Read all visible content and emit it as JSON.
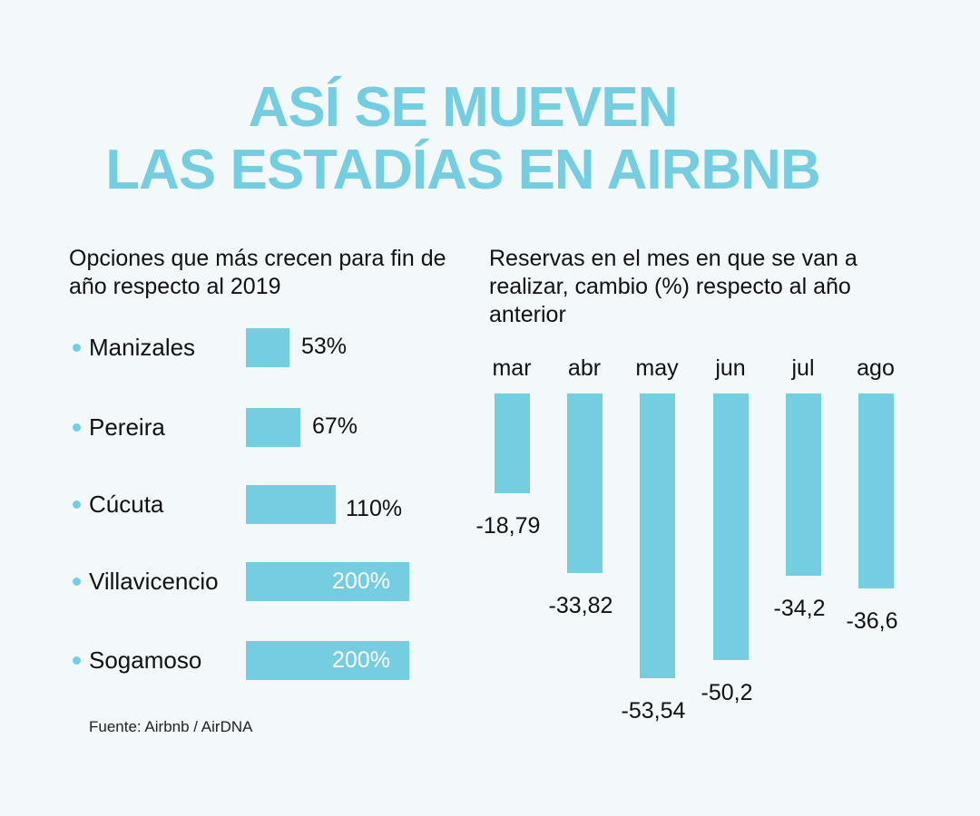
{
  "header": {
    "title_line1": "ASÍ SE MUEVEN",
    "title_line2": "LAS ESTADÍAS EN AIRBNB"
  },
  "colors": {
    "accent": "#74cde1",
    "background": "#f3f9fa",
    "text": "#111111"
  },
  "source": "Fuente: Airbnb / AirDNA",
  "chart_data": [
    {
      "type": "bar",
      "orientation": "horizontal",
      "title": "Opciones que más crecen para fin de año respecto al 2019",
      "categories": [
        "Manizales",
        "Pereira",
        "Cúcuta",
        "Villavicencio",
        "Sogamoso"
      ],
      "values": [
        53,
        67,
        110,
        200,
        200
      ],
      "labels": [
        "53%",
        "67%",
        "110%",
        "200%",
        "200%"
      ],
      "unit": "%",
      "xlim": [
        0,
        200
      ],
      "grid": false
    },
    {
      "type": "bar",
      "orientation": "vertical",
      "title": "Reservas en el mes en que se van a realizar, cambio (%) respecto al año anterior",
      "categories": [
        "mar",
        "abr",
        "may",
        "jun",
        "jul",
        "ago"
      ],
      "values": [
        -18.79,
        -33.82,
        -53.54,
        -50.2,
        -34.2,
        -36.6
      ],
      "labels": [
        "-18,79",
        "-33,82",
        "-53,54",
        "-50,2",
        "-34,2",
        "-36,6"
      ],
      "unit": "%",
      "ylim": [
        -53.54,
        0
      ],
      "grid": false
    }
  ]
}
